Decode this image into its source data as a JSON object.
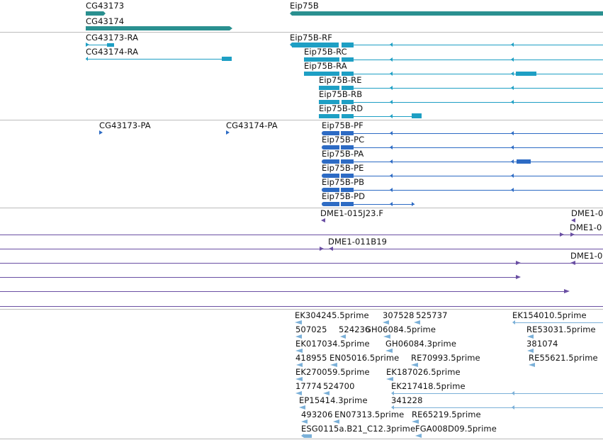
{
  "colors": {
    "gene": "#2a9090",
    "mrna": "#1e9fc4",
    "cds": "#2d6bc4",
    "clone": "#6a4fa3",
    "est": "#7bb0d8",
    "separator": "#bcbcbc"
  },
  "tracks": {
    "genes": {
      "items": [
        {
          "name": "CG43173"
        },
        {
          "name": "CG43174"
        },
        {
          "name": "Eip75B"
        }
      ]
    },
    "mrnas": {
      "items": [
        {
          "name": "CG43173-RA"
        },
        {
          "name": "CG43174-RA"
        },
        {
          "name": "Eip75B-RF"
        },
        {
          "name": "Eip75B-RC"
        },
        {
          "name": "Eip75B-RA"
        },
        {
          "name": "Eip75B-RE"
        },
        {
          "name": "Eip75B-RB"
        },
        {
          "name": "Eip75B-RD"
        }
      ]
    },
    "cds": {
      "items": [
        {
          "name": "CG43173-PA"
        },
        {
          "name": "CG43174-PA"
        },
        {
          "name": "Eip75B-PF"
        },
        {
          "name": "Eip75B-PC"
        },
        {
          "name": "Eip75B-PA"
        },
        {
          "name": "Eip75B-PE"
        },
        {
          "name": "Eip75B-PB"
        },
        {
          "name": "Eip75B-PD"
        }
      ]
    },
    "clones": {
      "items": [
        {
          "name": "DME1-015J23.F"
        },
        {
          "name": "DME1-0"
        },
        {
          "name": "DME1-0"
        },
        {
          "name": "DME1-011B19"
        },
        {
          "name": "DME1-0"
        }
      ]
    },
    "ests": {
      "items": [
        {
          "name": "EK304245.5prime"
        },
        {
          "name": "307528"
        },
        {
          "name": "525737"
        },
        {
          "name": "EK154010.5prime"
        },
        {
          "name": "507025"
        },
        {
          "name": "524236"
        },
        {
          "name": "GH06084.5prime"
        },
        {
          "name": "RE53031.5prime"
        },
        {
          "name": "EK017034.5prime"
        },
        {
          "name": "GH06084.3prime"
        },
        {
          "name": "381074"
        },
        {
          "name": "418955"
        },
        {
          "name": "EN05016.5prime"
        },
        {
          "name": "RE70993.5prime"
        },
        {
          "name": "RE55621.5prime"
        },
        {
          "name": "EK270059.5prime"
        },
        {
          "name": "EK187026.5prime"
        },
        {
          "name": "17774"
        },
        {
          "name": "524700"
        },
        {
          "name": "EK217418.5prime"
        },
        {
          "name": "EP15414.3prime"
        },
        {
          "name": "341228"
        },
        {
          "name": "493206"
        },
        {
          "name": "EN07313.5prime"
        },
        {
          "name": "RE65219.5prime"
        },
        {
          "name": "ESG0115a.B21_C12.3prime"
        },
        {
          "name": "FGA008D09.5prime"
        }
      ]
    }
  }
}
